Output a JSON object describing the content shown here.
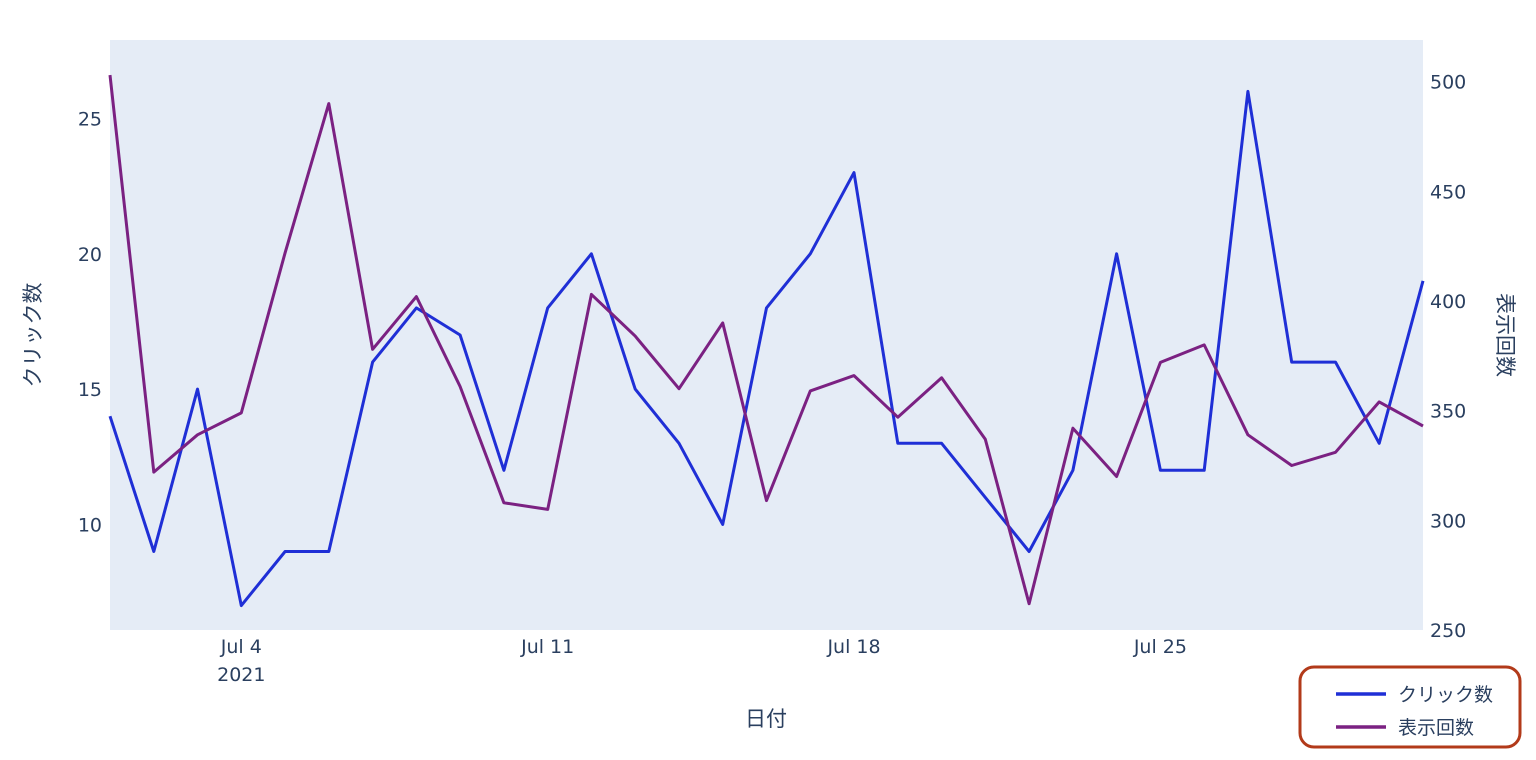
{
  "chart_data": {
    "type": "line",
    "xlabel": "日付",
    "ylabel_left": "クリック数",
    "ylabel_right": "表示回数",
    "x": [
      "2021-07-01",
      "2021-07-02",
      "2021-07-03",
      "2021-07-04",
      "2021-07-05",
      "2021-07-06",
      "2021-07-07",
      "2021-07-08",
      "2021-07-09",
      "2021-07-10",
      "2021-07-11",
      "2021-07-12",
      "2021-07-13",
      "2021-07-14",
      "2021-07-15",
      "2021-07-16",
      "2021-07-17",
      "2021-07-18",
      "2021-07-19",
      "2021-07-20",
      "2021-07-21",
      "2021-07-22",
      "2021-07-23",
      "2021-07-24",
      "2021-07-25",
      "2021-07-26",
      "2021-07-27",
      "2021-07-28",
      "2021-07-29",
      "2021-07-30",
      "2021-07-31"
    ],
    "x_ticks": [
      {
        "date": "2021-07-04",
        "label": "Jul 4",
        "sublabel": "2021"
      },
      {
        "date": "2021-07-11",
        "label": "Jul 11",
        "sublabel": ""
      },
      {
        "date": "2021-07-18",
        "label": "Jul 18",
        "sublabel": ""
      },
      {
        "date": "2021-07-25",
        "label": "Jul 25",
        "sublabel": ""
      }
    ],
    "y_left": {
      "range": [
        6.1,
        27.9
      ],
      "ticks": [
        10,
        15,
        20,
        25
      ]
    },
    "y_right": {
      "range": [
        250,
        519
      ],
      "ticks": [
        250,
        300,
        350,
        400,
        450,
        500
      ]
    },
    "series": [
      {
        "name": "クリック数",
        "axis": "left",
        "color": "#1f2fd6",
        "values": [
          14,
          9,
          15,
          7,
          9,
          9,
          16,
          18,
          17,
          12,
          18,
          20,
          15,
          13,
          10,
          18,
          20,
          23,
          13,
          13,
          11,
          9,
          12,
          20,
          12,
          12,
          26,
          16,
          16,
          13,
          19
        ]
      },
      {
        "name": "表示回数",
        "axis": "right",
        "color": "#7b2182",
        "values": [
          503,
          322,
          339,
          349,
          422,
          490,
          378,
          402,
          361,
          308,
          305,
          403,
          384,
          360,
          390,
          309,
          359,
          366,
          347,
          365,
          337,
          262,
          342,
          320,
          372,
          380,
          339,
          325,
          331,
          354,
          343
        ]
      }
    ],
    "grid": false,
    "legend_position": "bottom-right"
  }
}
